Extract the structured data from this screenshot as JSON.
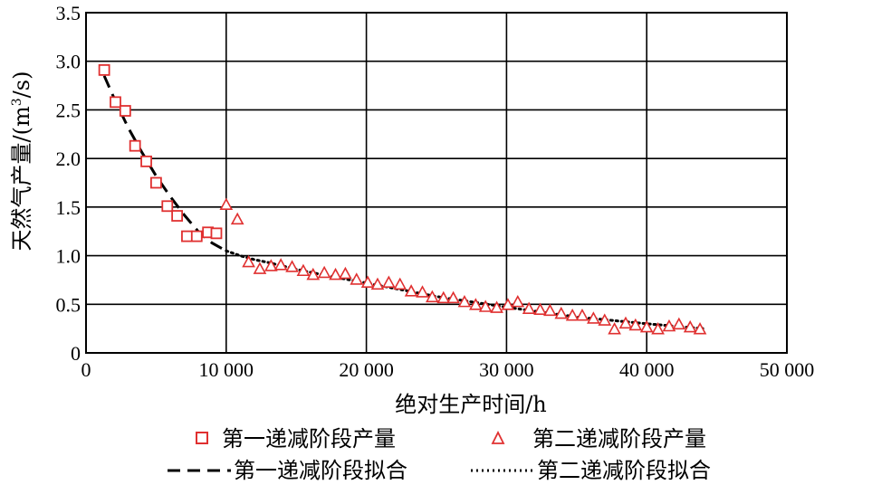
{
  "chart_data": {
    "type": "scatter",
    "xlabel": "绝对生产时间/h",
    "ylabel_main": "天然气产量/(m",
    "ylabel_sup": "3",
    "ylabel_end": "/s)",
    "xlim": [
      0,
      50000
    ],
    "ylim": [
      0,
      3.5
    ],
    "grid": true,
    "x_ticks": [
      0,
      10000,
      20000,
      30000,
      40000,
      50000
    ],
    "x_tick_labels": [
      "0",
      "10 000",
      "20 000",
      "30 000",
      "40 000",
      "50 000"
    ],
    "y_ticks": [
      0,
      0.5,
      1.0,
      1.5,
      2.0,
      2.5,
      3.0,
      3.5
    ],
    "y_tick_labels": [
      "0",
      "0.5",
      "1.0",
      "1.5",
      "2.0",
      "2.5",
      "3.0",
      "3.5"
    ],
    "series": [
      {
        "name": "第一递减阶段产量",
        "marker": "square",
        "color": "#e03030",
        "points": [
          [
            1300,
            2.91
          ],
          [
            2100,
            2.58
          ],
          [
            2800,
            2.49
          ],
          [
            3500,
            2.13
          ],
          [
            4300,
            1.97
          ],
          [
            5000,
            1.75
          ],
          [
            5800,
            1.51
          ],
          [
            6500,
            1.41
          ],
          [
            7200,
            1.2
          ],
          [
            7900,
            1.2
          ],
          [
            8700,
            1.24
          ],
          [
            9300,
            1.23
          ]
        ]
      },
      {
        "name": "第二递减阶段产量",
        "marker": "triangle",
        "color": "#e03030",
        "points": [
          [
            10000,
            1.52
          ],
          [
            10800,
            1.37
          ],
          [
            11600,
            0.93
          ],
          [
            12400,
            0.86
          ],
          [
            13200,
            0.89
          ],
          [
            13900,
            0.9
          ],
          [
            14700,
            0.88
          ],
          [
            15500,
            0.84
          ],
          [
            16200,
            0.8
          ],
          [
            17000,
            0.82
          ],
          [
            17800,
            0.8
          ],
          [
            18500,
            0.81
          ],
          [
            19300,
            0.75
          ],
          [
            20100,
            0.72
          ],
          [
            20800,
            0.7
          ],
          [
            21600,
            0.72
          ],
          [
            22400,
            0.7
          ],
          [
            23200,
            0.63
          ],
          [
            24000,
            0.62
          ],
          [
            24700,
            0.57
          ],
          [
            25500,
            0.56
          ],
          [
            26200,
            0.56
          ],
          [
            27000,
            0.52
          ],
          [
            27800,
            0.49
          ],
          [
            28500,
            0.47
          ],
          [
            29300,
            0.46
          ],
          [
            30100,
            0.49
          ],
          [
            30800,
            0.52
          ],
          [
            31600,
            0.45
          ],
          [
            32400,
            0.44
          ],
          [
            33100,
            0.43
          ],
          [
            33900,
            0.4
          ],
          [
            34700,
            0.38
          ],
          [
            35400,
            0.38
          ],
          [
            36200,
            0.35
          ],
          [
            37000,
            0.33
          ],
          [
            37700,
            0.24
          ],
          [
            38500,
            0.3
          ],
          [
            39200,
            0.28
          ],
          [
            40000,
            0.26
          ],
          [
            40800,
            0.24
          ],
          [
            41600,
            0.27
          ],
          [
            42300,
            0.29
          ],
          [
            43100,
            0.26
          ],
          [
            43800,
            0.24
          ]
        ]
      },
      {
        "name": "第一递减阶段拟合",
        "style": "dashed",
        "color": "#000000",
        "points": [
          [
            1300,
            2.85
          ],
          [
            2000,
            2.62
          ],
          [
            3000,
            2.32
          ],
          [
            4000,
            2.06
          ],
          [
            5000,
            1.82
          ],
          [
            6000,
            1.61
          ],
          [
            7000,
            1.42
          ],
          [
            8000,
            1.25
          ],
          [
            9000,
            1.13
          ],
          [
            10000,
            1.05
          ]
        ]
      },
      {
        "name": "第二递减阶段拟合",
        "style": "dotted",
        "color": "#000000",
        "points": [
          [
            10000,
            1.05
          ],
          [
            11000,
            1.0
          ],
          [
            12000,
            0.96
          ],
          [
            13000,
            0.93
          ],
          [
            15000,
            0.86
          ],
          [
            17000,
            0.8
          ],
          [
            20000,
            0.72
          ],
          [
            25000,
            0.58
          ],
          [
            30000,
            0.47
          ],
          [
            35000,
            0.37
          ],
          [
            40000,
            0.3
          ],
          [
            44000,
            0.25
          ]
        ]
      }
    ],
    "legend": {
      "placement": "bottom",
      "items": [
        {
          "label": "第一递减阶段产量",
          "series": 0
        },
        {
          "label": "第二递减阶段产量",
          "series": 1
        },
        {
          "label": "第一递减阶段拟合",
          "series": 2
        },
        {
          "label": "第二递减阶段拟合",
          "series": 3
        }
      ]
    }
  }
}
